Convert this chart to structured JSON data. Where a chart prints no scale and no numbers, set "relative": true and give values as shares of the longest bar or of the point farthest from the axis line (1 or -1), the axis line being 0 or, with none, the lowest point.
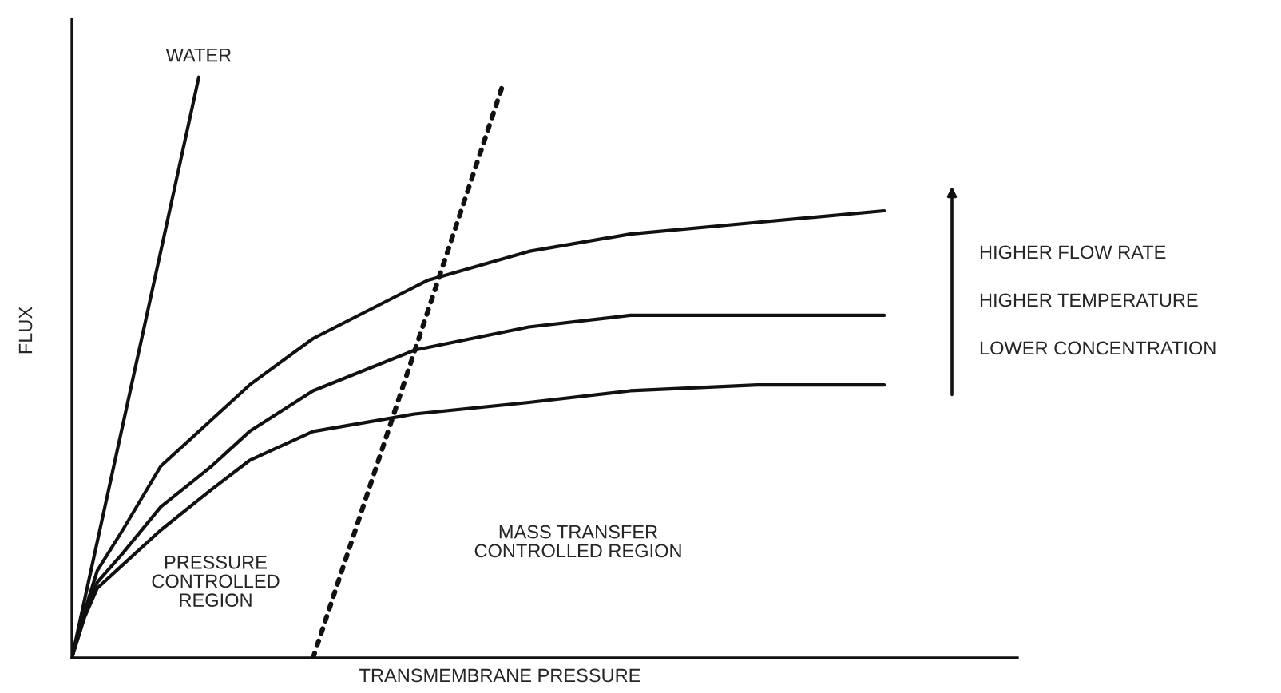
{
  "chart_data": {
    "type": "line",
    "relative": true,
    "xlabel": "TRANSMEMBRANE PRESSURE",
    "ylabel": "FLUX",
    "legend": false,
    "marker": "none",
    "categories": [
      null,
      null,
      null,
      null,
      null,
      null,
      null,
      null,
      null,
      null,
      null,
      null,
      null,
      null,
      null,
      null,
      null,
      null,
      null,
      null,
      null,
      null,
      null,
      null,
      null,
      null,
      null,
      null,
      null,
      null,
      null,
      null,
      null,
      null,
      null,
      null,
      null,
      null,
      null,
      null,
      null,
      null,
      null,
      null,
      null,
      null,
      null,
      null,
      null,
      null,
      null,
      null,
      null,
      null,
      null,
      null,
      null,
      null,
      null,
      null,
      null,
      null,
      null,
      null,
      null,
      null,
      null,
      null,
      null,
      null,
      null,
      null,
      null,
      null,
      null
    ],
    "series": [
      {
        "name": "WATER",
        "color": "#111111",
        "line_style": "solid",
        "values": [
          0,
          null,
          null,
          null,
          null,
          null,
          null,
          null,
          null,
          null,
          1,
          null,
          null,
          null,
          null,
          null,
          null,
          null,
          null,
          null,
          null,
          null,
          null,
          null,
          null,
          null,
          null,
          null,
          null,
          null,
          null,
          null,
          null,
          null,
          null,
          null,
          null,
          null,
          null,
          null,
          null,
          null,
          null,
          null,
          null,
          null,
          null,
          null,
          null,
          null,
          null,
          null,
          null,
          null,
          null,
          null,
          null,
          null,
          null,
          null,
          null,
          null,
          null,
          null,
          null,
          null,
          null,
          null,
          null,
          null,
          null,
          null,
          null,
          null,
          null
        ]
      },
      {
        "color": "#111111",
        "line_style": "dotted",
        "values": [
          null,
          null,
          null,
          null,
          null,
          null,
          null,
          null,
          null,
          null,
          null,
          null,
          null,
          null,
          null,
          null,
          null,
          null,
          null,
          0,
          null,
          null,
          null,
          null,
          null,
          null,
          null,
          null,
          null,
          null,
          null,
          null,
          null,
          null,
          0.99,
          null,
          null,
          null,
          null,
          null,
          null,
          null,
          null,
          null,
          null,
          null,
          null,
          null,
          null,
          null,
          null,
          null,
          null,
          null,
          null,
          null,
          null,
          null,
          null,
          null,
          null,
          null,
          null,
          null,
          null,
          null,
          null,
          null,
          null,
          null,
          null,
          null,
          null,
          null,
          null
        ]
      },
      {
        "color": "#111111",
        "line_style": "solid",
        "values": [
          0,
          0.08,
          0.15,
          null,
          0.22,
          null,
          null,
          0.33,
          null,
          null,
          null,
          0.41,
          null,
          null,
          0.47,
          null,
          null,
          null,
          null,
          0.55,
          null,
          null,
          null,
          null,
          null,
          null,
          null,
          null,
          0.65,
          null,
          null,
          null,
          null,
          null,
          null,
          null,
          0.7,
          null,
          null,
          null,
          null,
          null,
          null,
          null,
          0.73,
          null,
          null,
          null,
          null,
          null,
          null,
          null,
          null,
          null,
          0.75,
          null,
          null,
          null,
          null,
          null,
          null,
          null,
          null,
          null,
          0.77,
          null,
          null,
          null,
          null,
          null,
          null,
          null,
          null,
          null,
          null
        ]
      },
      {
        "color": "#111111",
        "line_style": "solid",
        "values": [
          0,
          0.08,
          0.13,
          null,
          0.18,
          null,
          null,
          0.26,
          null,
          null,
          null,
          0.33,
          null,
          null,
          0.39,
          null,
          null,
          null,
          null,
          0.46,
          null,
          null,
          null,
          null,
          null,
          null,
          null,
          0.53,
          null,
          null,
          null,
          null,
          null,
          null,
          null,
          null,
          0.57,
          null,
          null,
          null,
          null,
          null,
          null,
          null,
          0.59,
          null,
          null,
          null,
          null,
          null,
          null,
          null,
          null,
          null,
          0.59,
          null,
          null,
          null,
          null,
          null,
          null,
          null,
          null,
          null,
          0.59,
          null,
          null,
          null,
          null,
          null,
          null,
          null,
          null,
          null,
          null
        ]
      },
      {
        "color": "#111111",
        "line_style": "solid",
        "values": [
          0,
          0.07,
          0.12,
          null,
          0.16,
          null,
          null,
          0.22,
          null,
          null,
          null,
          0.29,
          null,
          null,
          0.34,
          null,
          null,
          null,
          null,
          0.39,
          null,
          null,
          null,
          null,
          null,
          null,
          null,
          0.42,
          null,
          null,
          null,
          null,
          null,
          null,
          null,
          null,
          0.44,
          null,
          null,
          null,
          null,
          null,
          null,
          null,
          0.46,
          null,
          null,
          null,
          null,
          null,
          null,
          null,
          null,
          null,
          0.47,
          null,
          null,
          null,
          null,
          null,
          null,
          null,
          null,
          null,
          0.47,
          null,
          null,
          null,
          null,
          null,
          null,
          null,
          null,
          null,
          null
        ]
      }
    ],
    "annotations": [
      "PRESSURE\nCONTROLLED\nREGION",
      "MASS TRANSFER\nCONTROLLED REGION",
      "HIGHER FLOW RATE",
      "HIGHER TEMPERATURE",
      "LOWER CONCENTRATION"
    ]
  }
}
